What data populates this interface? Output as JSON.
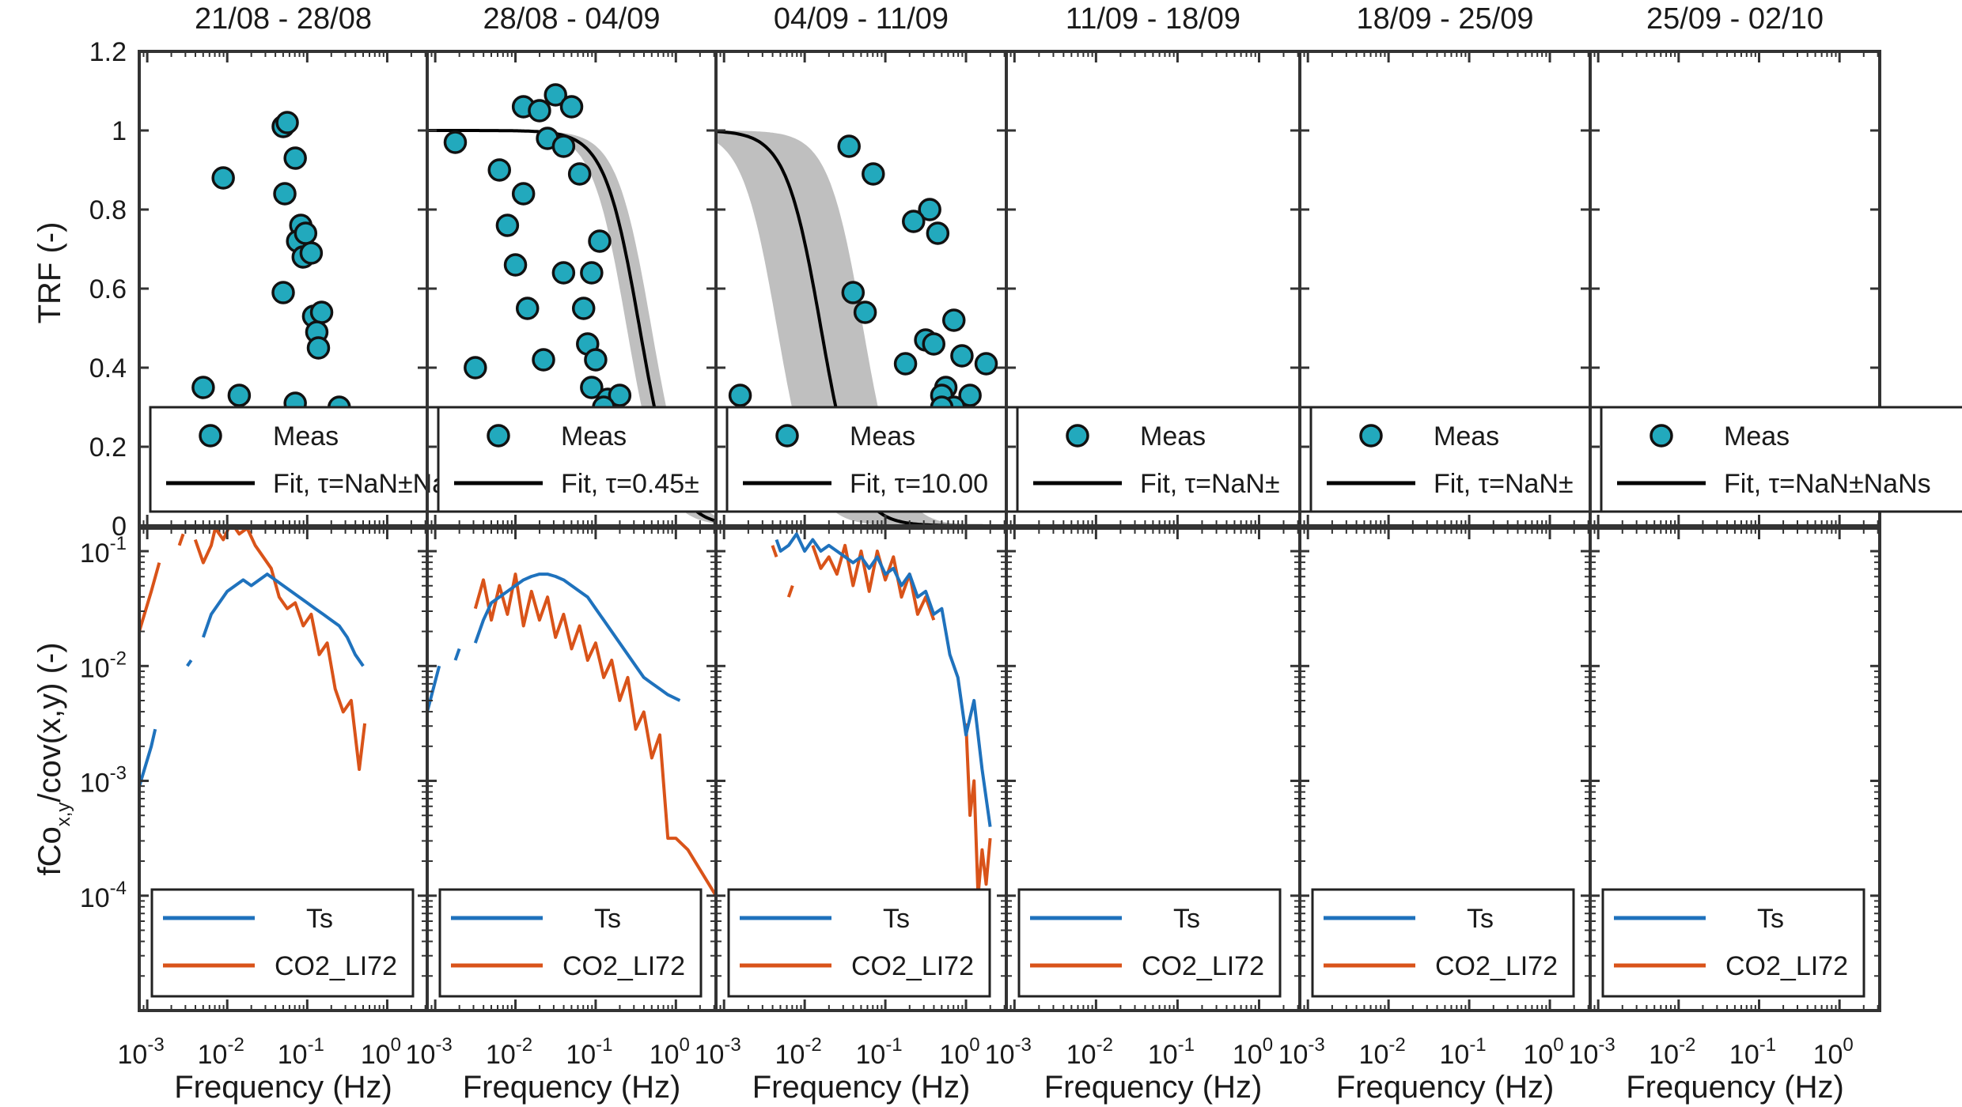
{
  "chart_data": {
    "type": "scatter",
    "titles": [
      "21/08 - 28/08",
      "28/08 - 04/09",
      "04/09 - 11/09",
      "11/09 - 18/09",
      "18/09 - 25/09",
      "25/09 - 02/10"
    ],
    "top_ylabel": "TRF (-)",
    "bottom_ylabel_main": "fCo",
    "bottom_ylabel_sub": "x,y",
    "bottom_ylabel_rest": "/cov(x,y) (-)",
    "xlabel": "Frequency (Hz)",
    "top_yticks": [
      "0",
      "0.2",
      "0.4",
      "0.6",
      "0.8",
      "1",
      "1.2"
    ],
    "top_ylim": [
      0,
      1.2
    ],
    "bottom_ylim_log10": [
      -5,
      -0.8
    ],
    "bottom_ytick_exponents": [
      "-1",
      "-2",
      "-3",
      "-4"
    ],
    "xlim_log10": [
      -3.1,
      0.5
    ],
    "x_tick_exponents": [
      "-3",
      "-2",
      "-1",
      "0"
    ],
    "x_tick_base": "10",
    "colors": {
      "meas": "#22a9bd",
      "ts": "#1f72bd",
      "co2": "#d95319",
      "band": "#bfbfbf",
      "fit": "#000000"
    },
    "legend_top": {
      "meas_label": "Meas",
      "fit_labels": [
        "Fit,  τ=NaN±NaNs",
        "Fit,  τ=0.45±",
        "Fit,  τ=10.00",
        "Fit,  τ=NaN±",
        "Fit,  τ=NaN±",
        "Fit,  τ=NaN±NaNs"
      ]
    },
    "legend_bottom": {
      "series": [
        "Ts",
        "CO2_LI72"
      ]
    },
    "panels": [
      {
        "meas": [
          [
            -1.3,
            1.01
          ],
          [
            -1.25,
            1.02
          ],
          [
            -1.15,
            0.93
          ],
          [
            -1.28,
            0.84
          ],
          [
            -1.08,
            0.76
          ],
          [
            -1.12,
            0.72
          ],
          [
            -1.02,
            0.74
          ],
          [
            -1.05,
            0.68
          ],
          [
            -0.95,
            0.69
          ],
          [
            -1.3,
            0.59
          ],
          [
            -0.92,
            0.53
          ],
          [
            -0.82,
            0.54
          ],
          [
            -0.88,
            0.49
          ],
          [
            -0.86,
            0.45
          ],
          [
            -2.05,
            0.88
          ],
          [
            -2.3,
            0.35
          ],
          [
            -1.85,
            0.33
          ],
          [
            -1.15,
            0.31
          ],
          [
            -0.6,
            0.3
          ]
        ],
        "fit": null,
        "ts": [
          [
            [
              -3.1,
              -3.05
            ],
            [
              -2.95,
              -2.7
            ],
            [
              -2.9,
              -2.55
            ]
          ],
          [
            [
              -2.5,
              -2.0
            ],
            [
              -2.45,
              -1.95
            ]
          ],
          [
            [
              -2.3,
              -1.75
            ],
            [
              -2.2,
              -1.55
            ],
            [
              -2.1,
              -1.45
            ],
            [
              -2.0,
              -1.35
            ],
            [
              -1.9,
              -1.3
            ],
            [
              -1.8,
              -1.25
            ],
            [
              -1.7,
              -1.3
            ],
            [
              -1.6,
              -1.25
            ],
            [
              -1.5,
              -1.2
            ],
            [
              -1.4,
              -1.25
            ],
            [
              -1.3,
              -1.3
            ],
            [
              -1.2,
              -1.35
            ],
            [
              -1.1,
              -1.4
            ],
            [
              -1.0,
              -1.45
            ],
            [
              -0.9,
              -1.5
            ],
            [
              -0.8,
              -1.55
            ],
            [
              -0.7,
              -1.6
            ],
            [
              -0.6,
              -1.65
            ],
            [
              -0.5,
              -1.75
            ],
            [
              -0.4,
              -1.9
            ],
            [
              -0.3,
              -2.0
            ]
          ]
        ],
        "co2": [
          [
            [
              -3.1,
              -1.7
            ],
            [
              -2.95,
              -1.35
            ],
            [
              -2.85,
              -1.1
            ]
          ],
          [
            [
              -2.6,
              -0.95
            ],
            [
              -2.55,
              -0.85
            ]
          ],
          [
            [
              -2.4,
              -0.9
            ],
            [
              -2.3,
              -1.1
            ],
            [
              -2.2,
              -0.95
            ],
            [
              -2.15,
              -0.8
            ],
            [
              -2.05,
              -0.9
            ],
            [
              -1.95,
              -0.75
            ],
            [
              -1.85,
              -0.85
            ],
            [
              -1.75,
              -0.8
            ],
            [
              -1.65,
              -0.95
            ],
            [
              -1.55,
              -1.05
            ],
            [
              -1.45,
              -1.15
            ],
            [
              -1.35,
              -1.4
            ],
            [
              -1.25,
              -1.5
            ],
            [
              -1.15,
              -1.45
            ],
            [
              -1.05,
              -1.65
            ],
            [
              -0.95,
              -1.55
            ],
            [
              -0.85,
              -1.9
            ],
            [
              -0.75,
              -1.8
            ],
            [
              -0.65,
              -2.2
            ],
            [
              -0.55,
              -2.4
            ],
            [
              -0.45,
              -2.3
            ],
            [
              -0.35,
              -2.9
            ],
            [
              -0.28,
              -2.5
            ]
          ]
        ]
      },
      {
        "meas": [
          [
            -2.75,
            0.97
          ],
          [
            -2.2,
            0.9
          ],
          [
            -1.9,
            0.84
          ],
          [
            -2.1,
            0.76
          ],
          [
            -1.9,
            1.06
          ],
          [
            -1.7,
            1.05
          ],
          [
            -1.5,
            1.09
          ],
          [
            -1.3,
            1.06
          ],
          [
            -1.6,
            0.98
          ],
          [
            -1.4,
            0.96
          ],
          [
            -1.2,
            0.89
          ],
          [
            -2.0,
            0.66
          ],
          [
            -1.4,
            0.64
          ],
          [
            -1.05,
            0.64
          ],
          [
            -0.95,
            0.72
          ],
          [
            -1.85,
            0.55
          ],
          [
            -1.15,
            0.55
          ],
          [
            -1.1,
            0.46
          ],
          [
            -1.0,
            0.42
          ],
          [
            -1.65,
            0.42
          ],
          [
            -1.05,
            0.35
          ],
          [
            -2.5,
            0.4
          ],
          [
            -0.85,
            0.32
          ],
          [
            -0.7,
            0.33
          ],
          [
            -0.9,
            0.3
          ]
        ],
        "fit": {
          "tau": 0.45,
          "band": [
            0.32,
            0.65
          ]
        },
        "ts": [
          [
            [
              -3.1,
              -2.4
            ],
            [
              -2.95,
              -2.0
            ]
          ],
          [
            [
              -2.75,
              -1.95
            ],
            [
              -2.7,
              -1.85
            ]
          ],
          [
            [
              -2.5,
              -1.8
            ],
            [
              -2.4,
              -1.6
            ],
            [
              -2.3,
              -1.45
            ],
            [
              -2.2,
              -1.4
            ],
            [
              -2.1,
              -1.35
            ],
            [
              -2.0,
              -1.3
            ],
            [
              -1.9,
              -1.25
            ],
            [
              -1.8,
              -1.22
            ],
            [
              -1.7,
              -1.2
            ],
            [
              -1.6,
              -1.2
            ],
            [
              -1.5,
              -1.22
            ],
            [
              -1.4,
              -1.25
            ],
            [
              -1.3,
              -1.3
            ],
            [
              -1.2,
              -1.35
            ],
            [
              -1.1,
              -1.4
            ],
            [
              -1.0,
              -1.5
            ],
            [
              -0.9,
              -1.6
            ],
            [
              -0.8,
              -1.7
            ],
            [
              -0.7,
              -1.8
            ],
            [
              -0.6,
              -1.9
            ],
            [
              -0.5,
              -2.0
            ],
            [
              -0.4,
              -2.1
            ],
            [
              -0.3,
              -2.15
            ],
            [
              -0.2,
              -2.2
            ],
            [
              -0.1,
              -2.25
            ],
            [
              0.05,
              -2.3
            ]
          ]
        ],
        "co2": [
          [
            [
              -2.5,
              -1.5
            ],
            [
              -2.4,
              -1.25
            ],
            [
              -2.3,
              -1.6
            ],
            [
              -2.2,
              -1.3
            ],
            [
              -2.1,
              -1.55
            ],
            [
              -2.0,
              -1.2
            ],
            [
              -1.9,
              -1.65
            ],
            [
              -1.8,
              -1.35
            ],
            [
              -1.7,
              -1.6
            ],
            [
              -1.6,
              -1.4
            ],
            [
              -1.5,
              -1.75
            ],
            [
              -1.4,
              -1.55
            ],
            [
              -1.3,
              -1.85
            ],
            [
              -1.2,
              -1.65
            ],
            [
              -1.1,
              -1.95
            ],
            [
              -1.0,
              -1.8
            ],
            [
              -0.9,
              -2.1
            ],
            [
              -0.8,
              -1.95
            ],
            [
              -0.7,
              -2.3
            ],
            [
              -0.6,
              -2.1
            ],
            [
              -0.5,
              -2.55
            ],
            [
              -0.4,
              -2.4
            ],
            [
              -0.3,
              -2.8
            ],
            [
              -0.2,
              -2.6
            ],
            [
              -0.1,
              -3.5
            ],
            [
              0.0,
              -3.5
            ],
            [
              0.15,
              -3.6
            ],
            [
              0.5,
              -4.0
            ]
          ]
        ]
      },
      {
        "meas": [
          [
            -1.45,
            0.96
          ],
          [
            -1.15,
            0.89
          ],
          [
            -1.4,
            0.59
          ],
          [
            -0.45,
            0.8
          ],
          [
            -0.35,
            0.74
          ],
          [
            -0.65,
            0.77
          ],
          [
            -1.25,
            0.54
          ],
          [
            -0.15,
            0.52
          ],
          [
            -0.5,
            0.47
          ],
          [
            -0.4,
            0.46
          ],
          [
            -0.25,
            0.35
          ],
          [
            -0.3,
            0.33
          ],
          [
            -0.05,
            0.43
          ],
          [
            -0.75,
            0.41
          ],
          [
            0.05,
            0.33
          ],
          [
            -0.15,
            0.3
          ],
          [
            -0.3,
            0.3
          ],
          [
            0.25,
            0.41
          ],
          [
            -2.8,
            0.33
          ]
        ],
        "fit": {
          "tau": 10.0,
          "band": [
            3.0,
            35.0
          ]
        },
        "ts": [
          [
            [
              -2.35,
              -0.9
            ],
            [
              -2.3,
              -1.0
            ],
            [
              -2.2,
              -0.95
            ],
            [
              -2.1,
              -0.85
            ],
            [
              -2.0,
              -1.0
            ],
            [
              -1.9,
              -0.9
            ],
            [
              -1.8,
              -1.0
            ],
            [
              -1.7,
              -0.95
            ],
            [
              -1.6,
              -1.0
            ],
            [
              -1.5,
              -1.05
            ],
            [
              -1.4,
              -1.1
            ],
            [
              -1.3,
              -1.05
            ],
            [
              -1.2,
              -1.15
            ],
            [
              -1.1,
              -1.05
            ],
            [
              -1.0,
              -1.2
            ],
            [
              -0.9,
              -1.15
            ],
            [
              -0.8,
              -1.3
            ],
            [
              -0.7,
              -1.2
            ],
            [
              -0.6,
              -1.4
            ],
            [
              -0.5,
              -1.35
            ],
            [
              -0.4,
              -1.55
            ],
            [
              -0.3,
              -1.5
            ],
            [
              -0.2,
              -1.9
            ],
            [
              -0.1,
              -2.1
            ],
            [
              0.0,
              -2.6
            ],
            [
              0.1,
              -2.3
            ],
            [
              0.2,
              -2.9
            ],
            [
              0.3,
              -3.4
            ]
          ]
        ],
        "co2": [
          [
            [
              -2.4,
              -0.95
            ],
            [
              -2.35,
              -1.05
            ]
          ],
          [
            [
              -2.2,
              -1.4
            ],
            [
              -2.15,
              -1.3
            ]
          ],
          [
            [
              -1.9,
              -0.95
            ],
            [
              -1.8,
              -1.15
            ],
            [
              -1.7,
              -1.05
            ],
            [
              -1.6,
              -1.2
            ],
            [
              -1.5,
              -0.95
            ],
            [
              -1.4,
              -1.3
            ],
            [
              -1.3,
              -1.0
            ],
            [
              -1.2,
              -1.35
            ],
            [
              -1.1,
              -1.0
            ],
            [
              -1.0,
              -1.25
            ],
            [
              -0.9,
              -1.05
            ],
            [
              -0.8,
              -1.4
            ],
            [
              -0.7,
              -1.2
            ],
            [
              -0.6,
              -1.55
            ],
            [
              -0.5,
              -1.4
            ],
            [
              -0.4,
              -1.6
            ]
          ],
          [
            [
              0.0,
              -2.5
            ],
            [
              0.05,
              -3.3
            ],
            [
              0.1,
              -3.0
            ],
            [
              0.15,
              -4.0
            ],
            [
              0.2,
              -3.6
            ],
            [
              0.25,
              -3.9
            ],
            [
              0.3,
              -3.5
            ]
          ]
        ]
      },
      {
        "meas": [],
        "fit": null,
        "ts": [],
        "co2": []
      },
      {
        "meas": [],
        "fit": null,
        "ts": [],
        "co2": []
      },
      {
        "meas": [],
        "fit": null,
        "ts": [],
        "co2": []
      }
    ]
  }
}
